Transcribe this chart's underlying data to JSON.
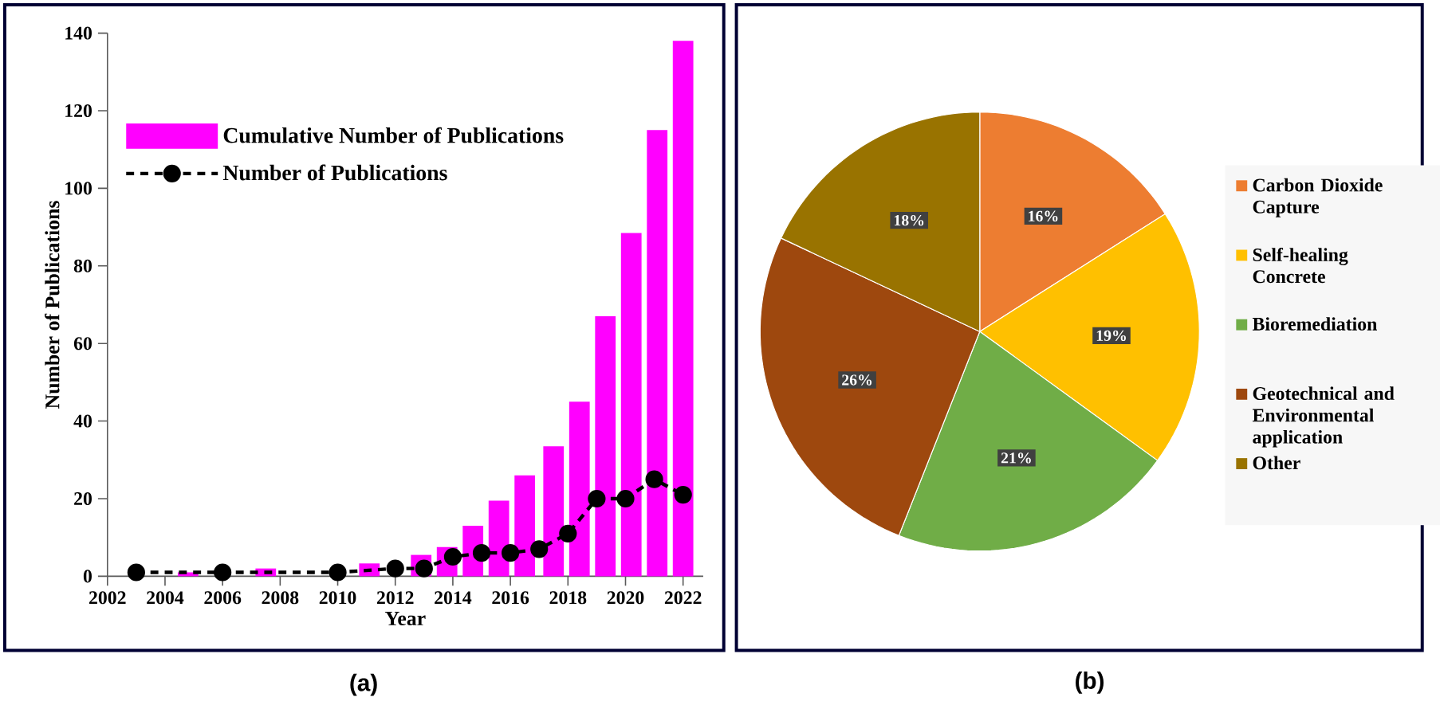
{
  "chart_data": [
    {
      "type": "bar",
      "xlabel": "Year",
      "ylabel": "Number of Publications",
      "series": [
        {
          "name": "Cumulative Number of Publications",
          "type": "bar",
          "color": "#ff00ff",
          "x": [
            2004.8,
            2007.5,
            2011.1,
            2012.9,
            2013.8,
            2014.7,
            2015.6,
            2016.5,
            2017.5,
            2018.4,
            2019.3,
            2020.2,
            2021.1,
            2022
          ],
          "values": [
            1,
            2,
            3.3,
            5.5,
            7.5,
            13,
            19.5,
            26,
            33.5,
            45,
            67,
            88.5,
            115,
            138
          ]
        },
        {
          "name": "Number of Publications",
          "type": "line",
          "color": "#000000",
          "marker": "circle",
          "line_style": "dashed",
          "x": [
            2003,
            2006,
            2010,
            2012,
            2013,
            2014,
            2015,
            2016,
            2017,
            2018,
            2019,
            2020,
            2021,
            2022
          ],
          "values": [
            1,
            1,
            1,
            2,
            2,
            5,
            6,
            6,
            7,
            11,
            20,
            20,
            25,
            21
          ]
        }
      ],
      "xlim": [
        2002,
        2022.7
      ],
      "ylim": [
        0,
        140
      ],
      "xticks": [
        2002,
        2004,
        2006,
        2008,
        2010,
        2012,
        2014,
        2016,
        2018,
        2020,
        2022
      ],
      "yticks": [
        0,
        20,
        40,
        60,
        80,
        100,
        120,
        140
      ],
      "legend": "top left",
      "annotations": [
        "(a)"
      ]
    },
    {
      "type": "pie",
      "categories": [
        "Carbon Dioxide Capture",
        "Self-healing Concrete",
        "Bioremediation",
        "Geotechnical and Environmental application",
        "Other"
      ],
      "values": [
        16,
        19,
        21,
        26,
        18
      ],
      "colors": [
        "#ed7d31",
        "#ffc000",
        "#70ad47",
        "#9e480e",
        "#997300"
      ],
      "value_labels": [
        "16%",
        "19%",
        "21%",
        "26%",
        "18%"
      ],
      "legend": "right",
      "annotations": [
        "(b)"
      ]
    }
  ]
}
